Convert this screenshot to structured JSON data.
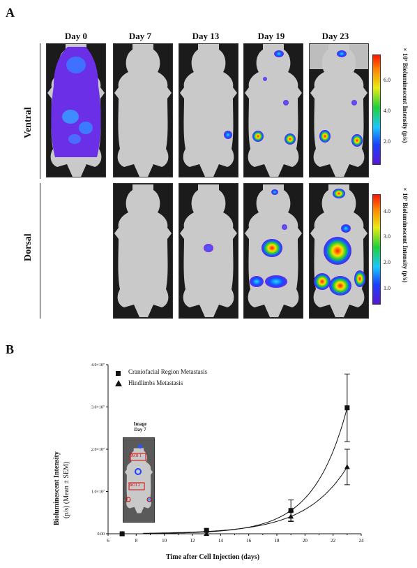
{
  "panelA": {
    "letter": "A",
    "days": [
      "Day 0",
      "Day 7",
      "Day 13",
      "Day 19",
      "Day 23"
    ],
    "rows": [
      "Ventral",
      "Dorsal"
    ],
    "colorbar_ventral": {
      "title": "×10⁷ Bioluminescent Intensity (p/s)",
      "ticks": [
        "6.0",
        "4.0",
        "2.0"
      ]
    },
    "colorbar_dorsal": {
      "title": "×10⁷ Bioluminescent Intensity (p/s)",
      "ticks": [
        "4.0",
        "3.0",
        "2.0",
        "1.0"
      ]
    }
  },
  "panelB": {
    "letter": "B",
    "inset": {
      "title_line1": "Image",
      "title_line2": "Day 7",
      "roi1": "ROI 1",
      "roi2": "ROI 2"
    }
  },
  "chart_data": {
    "type": "line",
    "xlabel": "Time after Cell Injection (days)",
    "ylabel_line1": "Bioluminescent Intensity",
    "ylabel_line2": "(p/s) (Mean ± SEM)",
    "xlim": [
      6,
      24
    ],
    "ylim": [
      0,
      40000000
    ],
    "x_ticks": [
      "6",
      "8",
      "10",
      "12",
      "14",
      "16",
      "18",
      "20",
      "22",
      "24"
    ],
    "y_ticks": [
      "0.00",
      "1.0×10⁷",
      "2.0×10⁷",
      "3.0×10⁷",
      "4.0×10⁷"
    ],
    "legend_position": "top-left",
    "series": [
      {
        "name": "Craniofacial Region Metastasis",
        "marker": "square",
        "x": [
          7,
          13,
          19,
          23
        ],
        "y": [
          0,
          800000,
          5500000,
          29800000
        ],
        "err": [
          0,
          0,
          2500000,
          8000000
        ]
      },
      {
        "name": "Hindlimbs Metastasis",
        "marker": "triangle",
        "x": [
          7,
          13,
          19,
          23
        ],
        "y": [
          0,
          0,
          4100000,
          15800000
        ],
        "err": [
          0,
          0,
          1200000,
          4200000
        ]
      }
    ]
  }
}
